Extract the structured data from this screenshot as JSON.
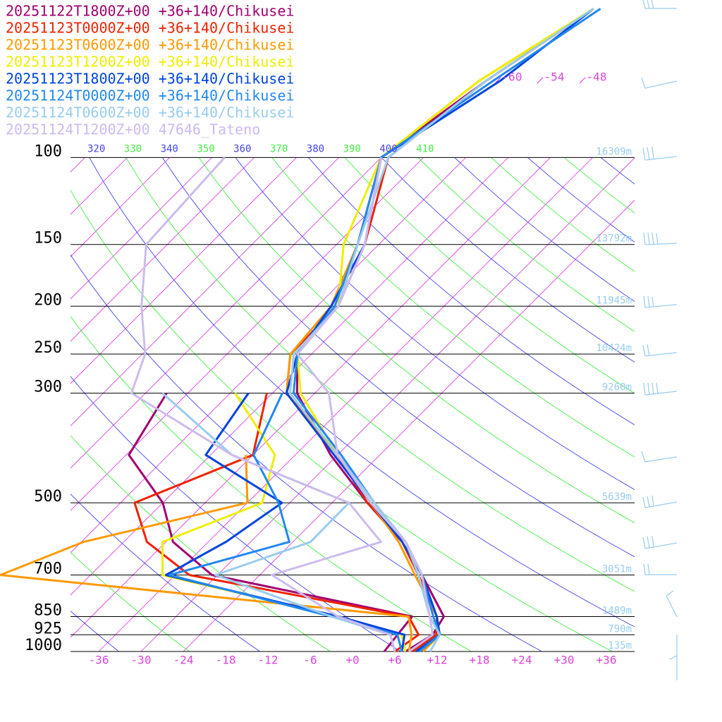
{
  "chart_data": {
    "type": "skew-t",
    "pressure": [
      1000,
      925,
      850,
      700,
      600,
      500,
      400,
      300,
      250,
      200,
      150,
      100,
      70,
      50
    ],
    "series": [
      {
        "name": "20251122T1800Z+00 +36+140/Chikusei",
        "color": "#a0006e",
        "temperature": [
          7.5,
          9,
          8,
          -1,
          -8,
          -19,
          -31,
          -44.5,
          -50,
          -52,
          -57,
          -66,
          -62,
          -57
        ],
        "dewpoint": [
          4.5,
          4,
          3.5,
          -30.8,
          -41,
          -48,
          -59.6,
          -63,
          null,
          null,
          null,
          null,
          null,
          null
        ]
      },
      {
        "name": "20251123T0000Z+00 +36+140/Chikusei",
        "color": "#ee2200",
        "temperature": [
          8.5,
          9.5,
          7,
          -1.5,
          -8.5,
          -19,
          -30,
          -46,
          -51,
          -51,
          -56,
          -65,
          -62,
          -57
        ],
        "dewpoint": [
          6,
          7,
          3,
          -34,
          -44.7,
          -52,
          -42,
          -48.8,
          null,
          null,
          null,
          null,
          null,
          null
        ]
      },
      {
        "name": "20251123T0600Z+00 +36+140/Chikusei",
        "color": "#ff9900",
        "temperature": [
          10,
          10,
          7,
          -2,
          -9,
          -18.5,
          -30,
          -46,
          -51,
          -52,
          -57,
          -66,
          -63,
          -57
        ],
        "dewpoint": [
          8,
          6,
          3,
          -60.8,
          -53.7,
          -36,
          -43,
          null,
          null,
          null,
          null,
          null,
          null,
          null
        ]
      },
      {
        "name": "20251123T1200Z+00 +36+140/Chikusei",
        "color": "#eeee00",
        "temperature": [
          9,
          10,
          7,
          -1,
          -8,
          -18,
          -30,
          -44,
          -50,
          -51,
          -59,
          -66,
          -63,
          -57
        ],
        "dewpoint": [
          7.5,
          4.6,
          -6.9,
          -37.8,
          -42.5,
          -33.9,
          -38.9,
          -53.3,
          null,
          null,
          null,
          null,
          null,
          null
        ]
      },
      {
        "name": "20251123T1800Z+00 +36+140/Chikusei",
        "color": "#0044dd",
        "temperature": [
          9,
          10,
          7,
          -1,
          -8.5,
          -18.5,
          -30.5,
          -46,
          -50,
          -52,
          -56,
          -66,
          -60,
          -57
        ],
        "dewpoint": [
          7,
          5,
          -6.9,
          -37.3,
          -33.5,
          -31.1,
          -48.7,
          -51.4,
          null,
          null,
          null,
          null,
          null,
          null
        ]
      },
      {
        "name": "20251124T0000Z+00 +36+140/Chikusei",
        "color": "#2288ee",
        "temperature": [
          9.5,
          10,
          6.5,
          -1,
          -8,
          -18,
          -29.5,
          -45,
          -50,
          -51.5,
          -57,
          -66,
          -61,
          -56
        ],
        "dewpoint": [
          7,
          4,
          -7.9,
          -36.8,
          -24.5,
          -31.6,
          -41.9,
          -46.6,
          null,
          null,
          null,
          null,
          null,
          null
        ]
      },
      {
        "name": "20251124T0600Z+00 +36+140/Chikusei",
        "color": "#99ccee",
        "temperature": [
          11,
          10,
          6,
          -1.5,
          -8,
          -18,
          -30,
          -45.5,
          -50.5,
          -51,
          -57,
          -65,
          -62,
          -57
        ],
        "dewpoint": [
          6,
          3,
          -7.9,
          -30.3,
          -21.5,
          -21.6,
          -45,
          -63.6,
          null,
          null,
          null,
          null,
          null,
          null
        ]
      },
      {
        "name": "20251124T1200Z+00 47646_Tateno",
        "color": "#ccbbee",
        "temperature": [
          8,
          9,
          6,
          -1,
          -8,
          -18.5,
          -30,
          -40,
          -50,
          -51,
          -56,
          -66,
          null,
          null
        ],
        "dewpoint": [
          6,
          3,
          -7,
          -22.3,
          -11.5,
          -21.6,
          -45,
          -68,
          -71.6,
          -78.9,
          -87,
          -88.2,
          null,
          null
        ]
      }
    ],
    "ylim": [
      1000,
      48
    ],
    "log_scale": true,
    "yticks": [
      100,
      150,
      200,
      250,
      300,
      500,
      700,
      850,
      925,
      1000
    ],
    "xlim": [
      -40,
      40
    ],
    "xticks": [
      {
        "value": -36,
        "label": "-36"
      },
      {
        "value": -30,
        "label": "-30"
      },
      {
        "value": -24,
        "label": "-24"
      },
      {
        "value": -18,
        "label": "-18"
      },
      {
        "value": -12,
        "label": "-12"
      },
      {
        "value": -6,
        "label": "-6"
      },
      {
        "value": 0,
        "label": "+0"
      },
      {
        "value": 6,
        "label": "+6"
      },
      {
        "value": 12,
        "label": "+12"
      },
      {
        "value": 18,
        "label": "+18"
      },
      {
        "value": 24,
        "label": "+24"
      },
      {
        "value": 30,
        "label": "+30"
      },
      {
        "value": 36,
        "label": "+36"
      }
    ],
    "isotherm_labels": [
      {
        "value": -60,
        "label": "-60"
      },
      {
        "value": -54,
        "label": "-54"
      },
      {
        "value": -48,
        "label": "-48"
      }
    ],
    "adiabat_labels": [
      320,
      330,
      340,
      350,
      360,
      370,
      380,
      390,
      400,
      410
    ],
    "height_labels": [
      {
        "pressure": 100,
        "label": "16309m"
      },
      {
        "pressure": 150,
        "label": "13792m"
      },
      {
        "pressure": 200,
        "label": "11945m"
      },
      {
        "pressure": 250,
        "label": "10424m"
      },
      {
        "pressure": 300,
        "label": "9260m"
      },
      {
        "pressure": 500,
        "label": "5639m"
      },
      {
        "pressure": 700,
        "label": "3051m"
      },
      {
        "pressure": 850,
        "label": "1489m"
      },
      {
        "pressure": 925,
        "label": "790m"
      },
      {
        "pressure": 1000,
        "label": "135m"
      }
    ]
  }
}
